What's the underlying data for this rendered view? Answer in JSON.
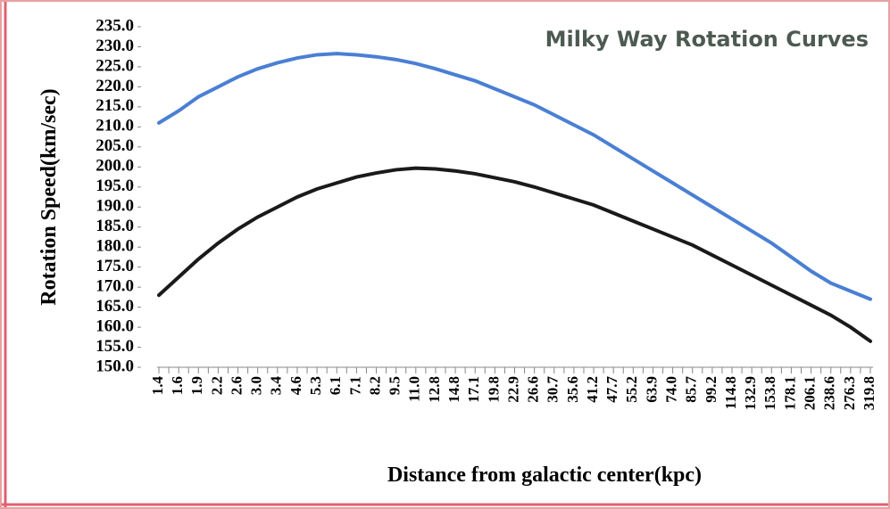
{
  "chart_data": {
    "type": "line",
    "title": "Milky Way Rotation Curves",
    "x_label": "Distance from galactic center(kpc)",
    "y_label": "Rotation Speed(km/sec)",
    "categories": [
      "1.4",
      "1.6",
      "1.9",
      "2.2",
      "2.6",
      "3.0",
      "3.4",
      "4.6",
      "5.3",
      "6.1",
      "7.1",
      "8.2",
      "9.5",
      "11.0",
      "12.8",
      "14.8",
      "17.1",
      "19.8",
      "22.9",
      "26.6",
      "30.7",
      "35.6",
      "41.2",
      "47.7",
      "55.2",
      "63.9",
      "74.0",
      "85.7",
      "99.2",
      "114.8",
      "132.9",
      "153.8",
      "178.1",
      "206.1",
      "238.6",
      "276.3",
      "319.8"
    ],
    "series": [
      {
        "color": "#4a7fd4",
        "values": [
          211,
          214,
          217.5,
          220,
          222.5,
          224.5,
          226,
          227.2,
          228,
          228.3,
          228,
          227.5,
          226.8,
          225.8,
          224.5,
          223,
          221.5,
          219.5,
          217.5,
          215.5,
          213,
          210.5,
          208,
          205,
          202,
          199,
          196,
          193,
          190,
          187,
          184,
          181,
          177.5,
          174,
          171,
          169,
          167
        ]
      },
      {
        "color": "#1a1a1a",
        "values": [
          168,
          172.5,
          177,
          181,
          184.5,
          187.5,
          190,
          192.5,
          194.5,
          196,
          197.5,
          198.5,
          199.3,
          199.7,
          199.5,
          199,
          198.3,
          197.3,
          196.3,
          195,
          193.5,
          192,
          190.5,
          188.5,
          186.5,
          184.5,
          182.5,
          180.5,
          178,
          175.5,
          173,
          170.5,
          168,
          165.5,
          163,
          160,
          156.5
        ]
      }
    ],
    "ylim": [
      150,
      235
    ],
    "yticks": [
      {
        "value": 150,
        "label": "150.0"
      },
      {
        "value": 155,
        "label": "155.0"
      },
      {
        "value": 160,
        "label": "160.0"
      },
      {
        "value": 165,
        "label": "165.0"
      },
      {
        "value": 170,
        "label": "170.0"
      },
      {
        "value": 175,
        "label": "175.0"
      },
      {
        "value": 180,
        "label": "180.0"
      },
      {
        "value": 185,
        "label": "185.0"
      },
      {
        "value": 190,
        "label": "190.0"
      },
      {
        "value": 195,
        "label": "195.0"
      },
      {
        "value": 200,
        "label": "200.0"
      },
      {
        "value": 205,
        "label": "205.0"
      },
      {
        "value": 210,
        "label": "210.0"
      },
      {
        "value": 215,
        "label": "215.0"
      },
      {
        "value": 220,
        "label": "220.0"
      },
      {
        "value": 225,
        "label": "225.0"
      },
      {
        "value": 230,
        "label": "230.0"
      },
      {
        "value": 235,
        "label": "235.0"
      }
    ],
    "grid": false
  }
}
